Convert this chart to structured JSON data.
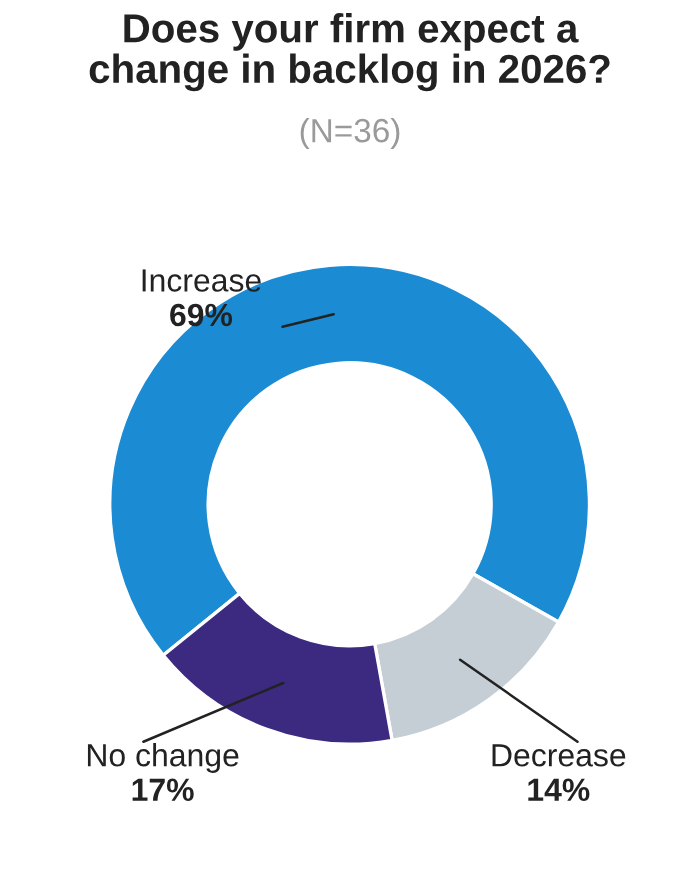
{
  "chart_data": {
    "type": "donut",
    "title": "Does your firm expect a\nchange in backlog in 2026?",
    "subtitle": "(N=36)",
    "categories": [
      "Increase",
      "Decrease",
      "No change"
    ],
    "values": [
      69,
      14,
      17
    ],
    "value_labels": [
      "69%",
      "14%",
      "17%"
    ],
    "colors": [
      "#1b8bd3",
      "#c5cdd5",
      "#3b2a80"
    ]
  }
}
